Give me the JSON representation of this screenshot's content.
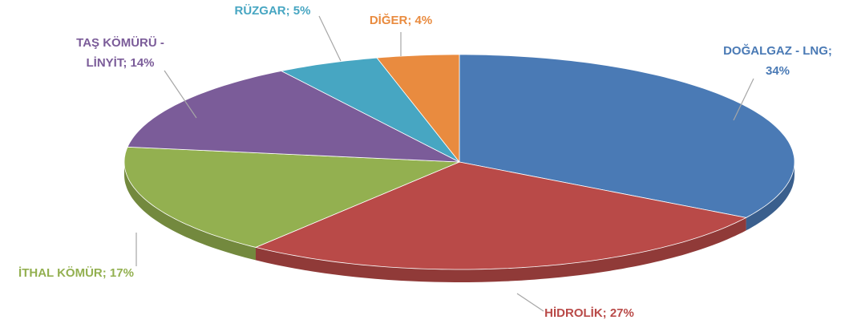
{
  "chart_data": {
    "type": "pie",
    "values": [
      34,
      27,
      17,
      14,
      5,
      4
    ],
    "value_labels": [
      "DOĞALGAZ - LNG;\n34%",
      "HİDROLİK; 27%",
      "İTHAL KÖMÜR; 17%",
      "TAŞ KÖMÜRÜ -\nLİNYİT; 14%",
      "RÜZGAR; 5%",
      "DİĞER; 4%"
    ],
    "colors": [
      "#4a7ab5",
      "#b94a48",
      "#93b050",
      "#7b5c99",
      "#47a6c2",
      "#e98b3f"
    ]
  }
}
